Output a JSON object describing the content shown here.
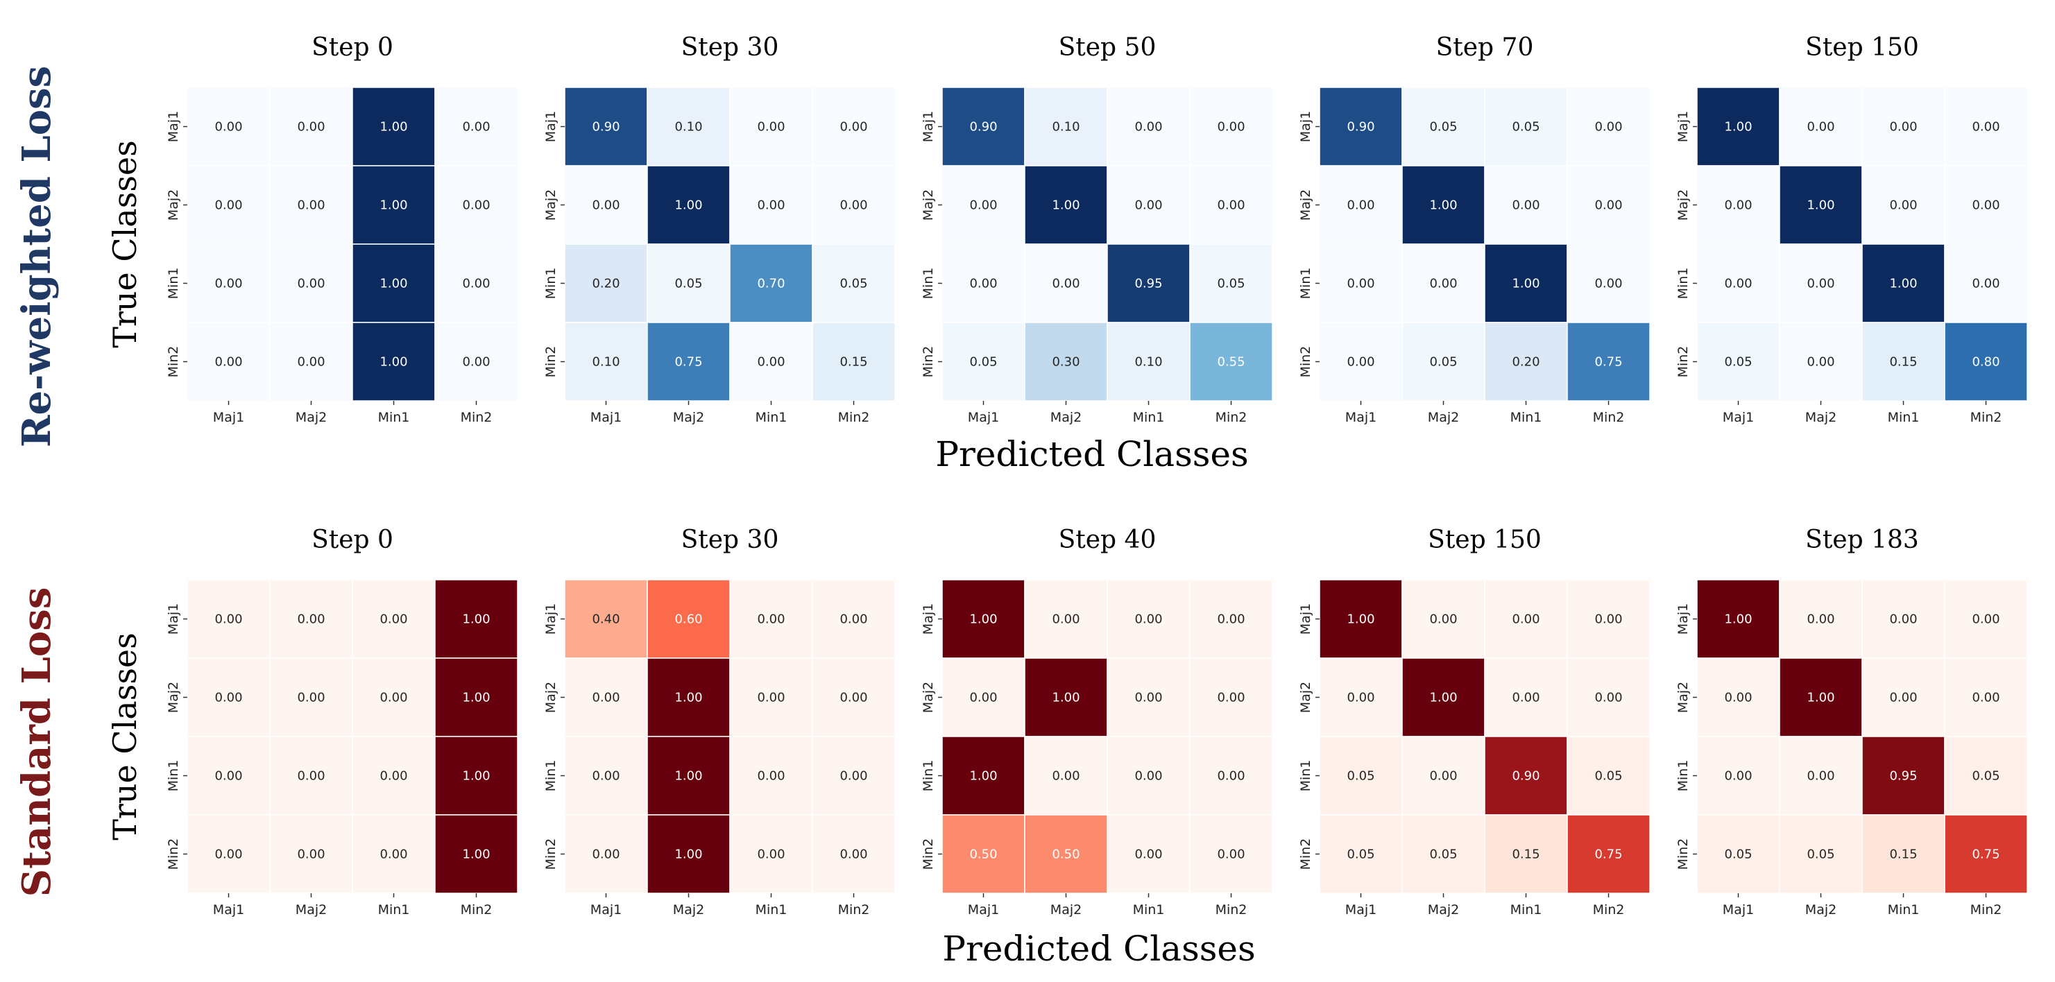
{
  "figure": {
    "row_titles": [
      "Re-weighted Loss",
      "Standard Loss"
    ],
    "ylabel": "True Classes",
    "xlabel": "Predicted Classes",
    "colors": {
      "reweighted_title": "#1f3864",
      "standard_title": "#7b1a1a",
      "blues_low": "#f7fbff",
      "blues_mid": "#6baed6",
      "blues_high": "#0c2a5e",
      "reds_low": "#fff5f0",
      "reds_mid": "#fb6a4a",
      "reds_high": "#67000d"
    }
  },
  "chart_data": [
    {
      "type": "heatmap",
      "row": "Re-weighted Loss",
      "title": "Step 0",
      "xlabels": [
        "Maj1",
        "Maj2",
        "Min1",
        "Min2"
      ],
      "ylabels": [
        "Maj1",
        "Maj2",
        "Min1",
        "Min2"
      ],
      "colormap": "Blues",
      "values": [
        [
          0.0,
          0.0,
          1.0,
          0.0
        ],
        [
          0.0,
          0.0,
          1.0,
          0.0
        ],
        [
          0.0,
          0.0,
          1.0,
          0.0
        ],
        [
          0.0,
          0.0,
          1.0,
          0.0
        ]
      ]
    },
    {
      "type": "heatmap",
      "row": "Re-weighted Loss",
      "title": "Step 30",
      "xlabels": [
        "Maj1",
        "Maj2",
        "Min1",
        "Min2"
      ],
      "ylabels": [
        "Maj1",
        "Maj2",
        "Min1",
        "Min2"
      ],
      "colormap": "Blues",
      "values": [
        [
          0.9,
          0.1,
          0.0,
          0.0
        ],
        [
          0.0,
          1.0,
          0.0,
          0.0
        ],
        [
          0.2,
          0.05,
          0.7,
          0.05
        ],
        [
          0.1,
          0.75,
          0.0,
          0.15
        ]
      ]
    },
    {
      "type": "heatmap",
      "row": "Re-weighted Loss",
      "title": "Step 50",
      "xlabels": [
        "Maj1",
        "Maj2",
        "Min1",
        "Min2"
      ],
      "ylabels": [
        "Maj1",
        "Maj2",
        "Min1",
        "Min2"
      ],
      "colormap": "Blues",
      "values": [
        [
          0.9,
          0.1,
          0.0,
          0.0
        ],
        [
          0.0,
          1.0,
          0.0,
          0.0
        ],
        [
          0.0,
          0.0,
          0.95,
          0.05
        ],
        [
          0.05,
          0.3,
          0.1,
          0.55
        ]
      ]
    },
    {
      "type": "heatmap",
      "row": "Re-weighted Loss",
      "title": "Step 70",
      "xlabels": [
        "Maj1",
        "Maj2",
        "Min1",
        "Min2"
      ],
      "ylabels": [
        "Maj1",
        "Maj2",
        "Min1",
        "Min2"
      ],
      "colormap": "Blues",
      "values": [
        [
          0.9,
          0.05,
          0.05,
          0.0
        ],
        [
          0.0,
          1.0,
          0.0,
          0.0
        ],
        [
          0.0,
          0.0,
          1.0,
          0.0
        ],
        [
          0.0,
          0.05,
          0.2,
          0.75
        ]
      ]
    },
    {
      "type": "heatmap",
      "row": "Re-weighted Loss",
      "title": "Step 150",
      "xlabels": [
        "Maj1",
        "Maj2",
        "Min1",
        "Min2"
      ],
      "ylabels": [
        "Maj1",
        "Maj2",
        "Min1",
        "Min2"
      ],
      "colormap": "Blues",
      "values": [
        [
          1.0,
          0.0,
          0.0,
          0.0
        ],
        [
          0.0,
          1.0,
          0.0,
          0.0
        ],
        [
          0.0,
          0.0,
          1.0,
          0.0
        ],
        [
          0.05,
          0.0,
          0.15,
          0.8
        ]
      ]
    },
    {
      "type": "heatmap",
      "row": "Standard Loss",
      "title": "Step 0",
      "xlabels": [
        "Maj1",
        "Maj2",
        "Min1",
        "Min2"
      ],
      "ylabels": [
        "Maj1",
        "Maj2",
        "Min1",
        "Min2"
      ],
      "colormap": "Reds",
      "values": [
        [
          0.0,
          0.0,
          0.0,
          1.0
        ],
        [
          0.0,
          0.0,
          0.0,
          1.0
        ],
        [
          0.0,
          0.0,
          0.0,
          1.0
        ],
        [
          0.0,
          0.0,
          0.0,
          1.0
        ]
      ]
    },
    {
      "type": "heatmap",
      "row": "Standard Loss",
      "title": "Step 30",
      "xlabels": [
        "Maj1",
        "Maj2",
        "Min1",
        "Min2"
      ],
      "ylabels": [
        "Maj1",
        "Maj2",
        "Min1",
        "Min2"
      ],
      "colormap": "Reds",
      "values": [
        [
          0.4,
          0.6,
          0.0,
          0.0
        ],
        [
          0.0,
          1.0,
          0.0,
          0.0
        ],
        [
          0.0,
          1.0,
          0.0,
          0.0
        ],
        [
          0.0,
          1.0,
          0.0,
          0.0
        ]
      ]
    },
    {
      "type": "heatmap",
      "row": "Standard Loss",
      "title": "Step 40",
      "xlabels": [
        "Maj1",
        "Maj2",
        "Min1",
        "Min2"
      ],
      "ylabels": [
        "Maj1",
        "Maj2",
        "Min1",
        "Min2"
      ],
      "colormap": "Reds",
      "values": [
        [
          1.0,
          0.0,
          0.0,
          0.0
        ],
        [
          0.0,
          1.0,
          0.0,
          0.0
        ],
        [
          1.0,
          0.0,
          0.0,
          0.0
        ],
        [
          0.5,
          0.5,
          0.0,
          0.0
        ]
      ]
    },
    {
      "type": "heatmap",
      "row": "Standard Loss",
      "title": "Step 150",
      "xlabels": [
        "Maj1",
        "Maj2",
        "Min1",
        "Min2"
      ],
      "ylabels": [
        "Maj1",
        "Maj2",
        "Min1",
        "Min2"
      ],
      "colormap": "Reds",
      "values": [
        [
          1.0,
          0.0,
          0.0,
          0.0
        ],
        [
          0.0,
          1.0,
          0.0,
          0.0
        ],
        [
          0.05,
          0.0,
          0.9,
          0.05
        ],
        [
          0.05,
          0.05,
          0.15,
          0.75
        ]
      ]
    },
    {
      "type": "heatmap",
      "row": "Standard Loss",
      "title": "Step 183",
      "xlabels": [
        "Maj1",
        "Maj2",
        "Min1",
        "Min2"
      ],
      "ylabels": [
        "Maj1",
        "Maj2",
        "Min1",
        "Min2"
      ],
      "colormap": "Reds",
      "values": [
        [
          1.0,
          0.0,
          0.0,
          0.0
        ],
        [
          0.0,
          1.0,
          0.0,
          0.0
        ],
        [
          0.0,
          0.0,
          0.95,
          0.05
        ],
        [
          0.05,
          0.05,
          0.15,
          0.75
        ]
      ]
    }
  ]
}
